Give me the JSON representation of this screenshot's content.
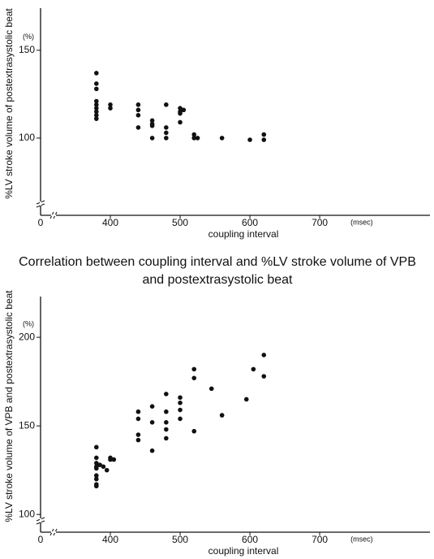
{
  "chart_data": [
    {
      "type": "scatter",
      "y_label": "%LV stroke volume of postextrasystolic beat",
      "x_label": "coupling interval",
      "x_unit": "(msec)",
      "y_unit": "(%)",
      "origin_label": "0",
      "color": "#111111",
      "xlim": [
        300,
        858
      ],
      "ylim": [
        56,
        174
      ],
      "xticks": [
        400,
        500,
        600,
        700
      ],
      "yticks": [
        100,
        150
      ],
      "x": [
        380,
        380,
        380,
        380,
        380,
        380,
        380,
        380,
        380,
        400,
        400,
        440,
        440,
        440,
        440,
        460,
        460,
        460,
        460,
        480,
        480,
        480,
        480,
        500,
        500,
        500,
        500,
        505,
        520,
        520,
        525,
        560,
        600,
        620,
        620
      ],
      "y": [
        137,
        131,
        128,
        121,
        119,
        117,
        115,
        113,
        111,
        119,
        117,
        119,
        116,
        113,
        106,
        110,
        108,
        107,
        100,
        119,
        106,
        103,
        100,
        117,
        115,
        114,
        109,
        116,
        102,
        100,
        100,
        100,
        99,
        102,
        99
      ]
    },
    {
      "type": "scatter",
      "title": "Correlation between coupling interval and %LV stroke volume of VPB and postextrasystolic beat",
      "y_label": "%LV stroke volume of VPB and postextrasystolic beat",
      "x_label": "coupling interval",
      "x_unit": "(msec)",
      "y_unit": "(%)",
      "origin_label": "0",
      "color": "#111111",
      "xlim": [
        300,
        858
      ],
      "ylim": [
        90,
        223
      ],
      "xticks": [
        400,
        500,
        600,
        700
      ],
      "yticks": [
        100,
        150,
        200
      ],
      "x": [
        380,
        380,
        380,
        380,
        380,
        380,
        380,
        380,
        380,
        385,
        390,
        395,
        400,
        400,
        405,
        440,
        440,
        440,
        440,
        460,
        460,
        460,
        480,
        480,
        480,
        480,
        480,
        500,
        500,
        500,
        500,
        520,
        520,
        520,
        545,
        560,
        595,
        605,
        620,
        620
      ],
      "y": [
        138,
        132,
        129,
        127,
        126,
        122,
        120,
        117,
        116,
        128,
        127,
        125,
        132,
        131,
        131,
        158,
        154,
        145,
        142,
        161,
        152,
        136,
        168,
        158,
        152,
        148,
        143,
        166,
        163,
        159,
        154,
        182,
        177,
        147,
        171,
        156,
        165,
        182,
        190,
        178
      ]
    }
  ]
}
